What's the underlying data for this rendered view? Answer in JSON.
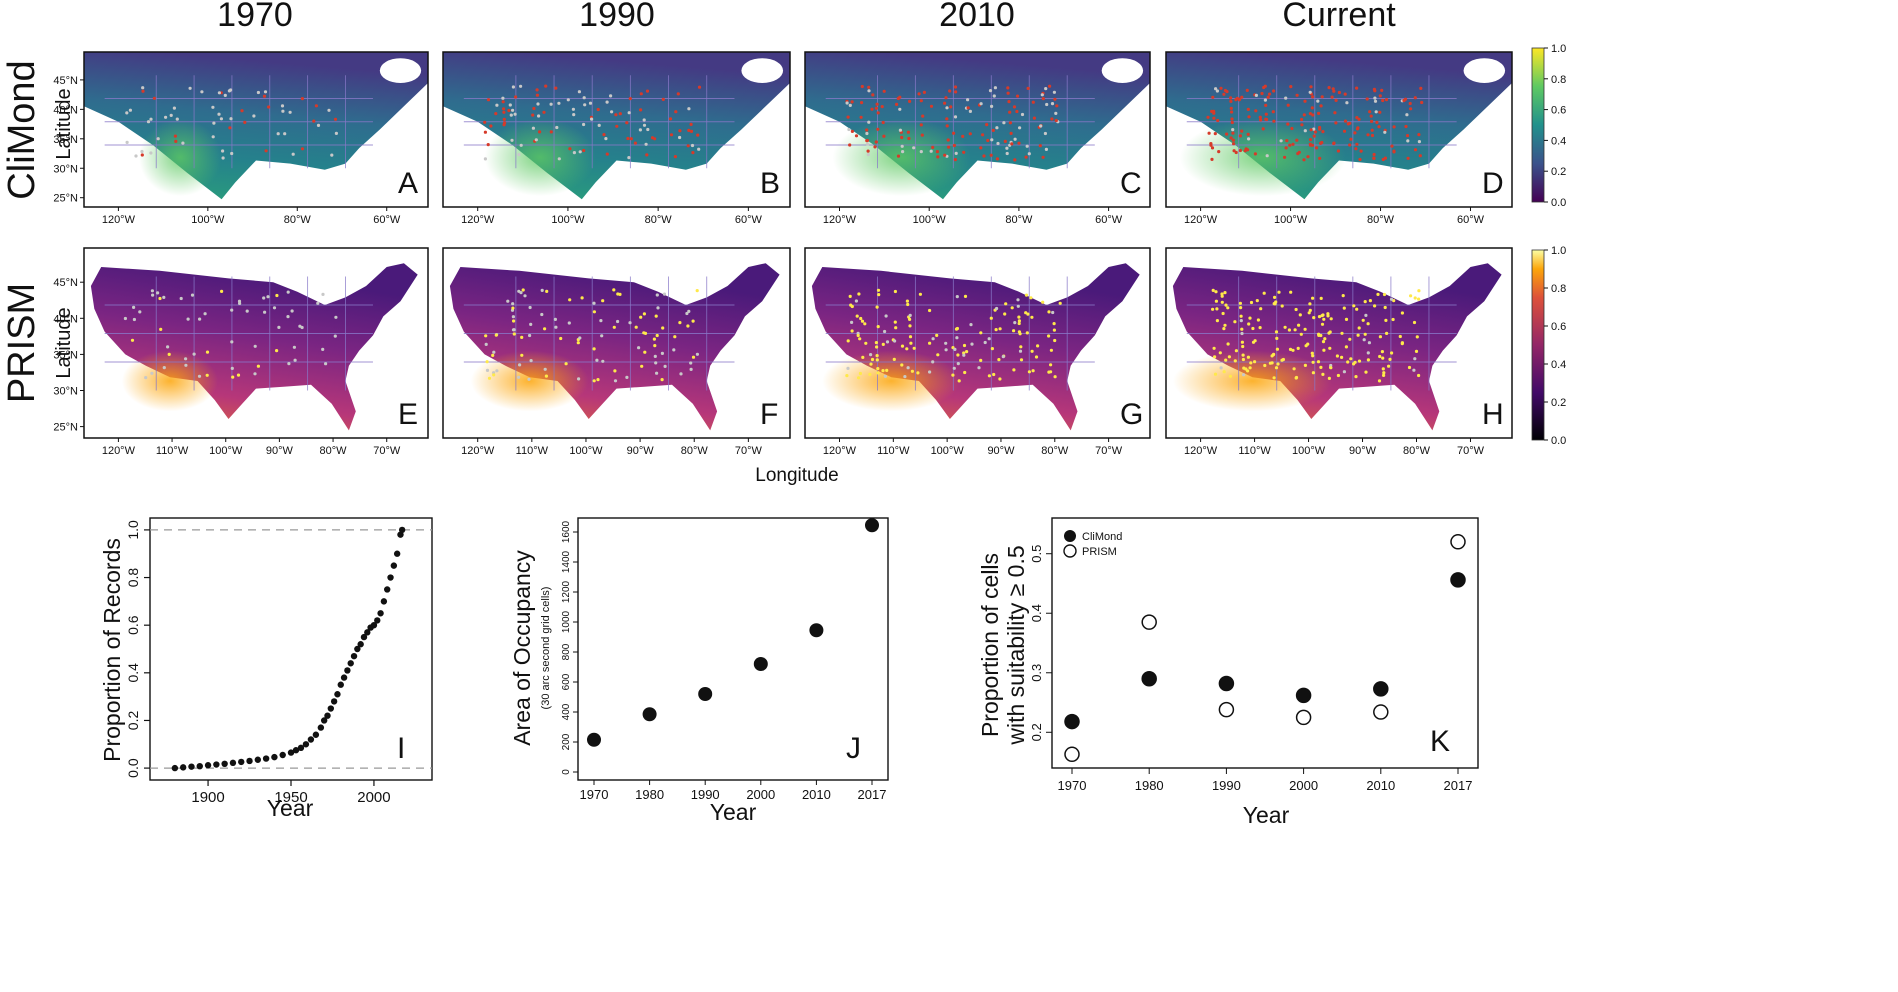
{
  "columns": [
    "1970",
    "1990",
    "2010",
    "Current"
  ],
  "rows": [
    {
      "name": "CliMond",
      "axis_label": "Latitude",
      "lat_ticks": [
        "45°N",
        "40°N",
        "35°N",
        "30°N",
        "25°N"
      ],
      "lon_ticks": [
        "120°W",
        "100°W",
        "80°W",
        "60°W"
      ],
      "panels": [
        "A",
        "B",
        "C",
        "D"
      ],
      "colorbar": "viridis"
    },
    {
      "name": "PRISM",
      "axis_label": "Latitude",
      "lat_ticks": [
        "45°N",
        "40°N",
        "35°N",
        "30°N",
        "25°N"
      ],
      "lon_ticks": [
        "120°W",
        "110°W",
        "100°W",
        "90°W",
        "80°W",
        "70°W"
      ],
      "panels": [
        "E",
        "F",
        "G",
        "H"
      ],
      "colorbar": "inferno"
    }
  ],
  "colorbar_ticks": [
    "1.0",
    "0.8",
    "0.6",
    "0.4",
    "0.2",
    "0.0"
  ],
  "map_xlabel": "Longitude",
  "colors": {
    "state_borders": "#8878c8",
    "climond_points_old": "#c8c8c8",
    "climond_points_new": "#d63a2a",
    "prism_points_old": "#c8c8c8",
    "prism_points_new": "#ffe94a"
  },
  "chart_data": [
    {
      "panel": "I",
      "type": "scatter",
      "xlabel": "Year",
      "ylabel": "Proportion of Records",
      "xlim": [
        1865,
        2035
      ],
      "ylim": [
        -0.05,
        1.05
      ],
      "xticks": [
        "1900",
        "1950",
        "2000"
      ],
      "yticks": [
        "0.0",
        "0.2",
        "0.4",
        "0.6",
        "0.8",
        "1.0"
      ],
      "reference_lines": [
        0,
        1
      ],
      "x": [
        1880,
        1885,
        1890,
        1895,
        1900,
        1905,
        1910,
        1915,
        1920,
        1925,
        1930,
        1935,
        1940,
        1945,
        1950,
        1953,
        1956,
        1959,
        1962,
        1965,
        1968,
        1970,
        1972,
        1974,
        1976,
        1978,
        1980,
        1982,
        1984,
        1986,
        1988,
        1990,
        1992,
        1994,
        1996,
        1998,
        2000,
        2002,
        2004,
        2006,
        2008,
        2010,
        2012,
        2014,
        2016,
        2017
      ],
      "y": [
        0.0,
        0.003,
        0.006,
        0.008,
        0.012,
        0.015,
        0.018,
        0.022,
        0.026,
        0.03,
        0.035,
        0.04,
        0.046,
        0.055,
        0.065,
        0.075,
        0.085,
        0.1,
        0.12,
        0.14,
        0.17,
        0.2,
        0.22,
        0.25,
        0.28,
        0.31,
        0.35,
        0.38,
        0.41,
        0.44,
        0.47,
        0.5,
        0.52,
        0.55,
        0.57,
        0.59,
        0.6,
        0.62,
        0.65,
        0.7,
        0.75,
        0.8,
        0.85,
        0.9,
        0.98,
        1.0
      ]
    },
    {
      "panel": "J",
      "type": "scatter",
      "xlabel": "Year",
      "ylabel": "Area of Occupancy",
      "ylabel_sub": "(30 arc second grid cells)",
      "categories": [
        "1970",
        "1980",
        "1990",
        "2000",
        "2010",
        "2017"
      ],
      "values": [
        215,
        385,
        520,
        720,
        945,
        1645
      ],
      "yticks": [
        "0",
        "200",
        "400",
        "600",
        "800",
        "1000",
        "1200",
        "1400",
        "1600"
      ],
      "ylim": [
        0,
        1680
      ]
    },
    {
      "panel": "K",
      "type": "scatter",
      "xlabel": "Year",
      "ylabel": "Proportion of cells",
      "ylabel_line2": "with suitability ≥ 0.5",
      "categories": [
        "1970",
        "1980",
        "1990",
        "2000",
        "2010",
        "2017"
      ],
      "yticks": [
        "0.2",
        "0.3",
        "0.4",
        "0.5"
      ],
      "ylim": [
        0.14,
        0.56
      ],
      "series": [
        {
          "name": "CliMond",
          "marker": "filled",
          "values": [
            0.218,
            0.29,
            0.282,
            0.262,
            0.273,
            0.456
          ]
        },
        {
          "name": "PRISM",
          "marker": "open",
          "values": [
            0.163,
            0.385,
            0.238,
            0.225,
            0.234,
            0.52
          ]
        }
      ],
      "legend": "top-left"
    }
  ]
}
